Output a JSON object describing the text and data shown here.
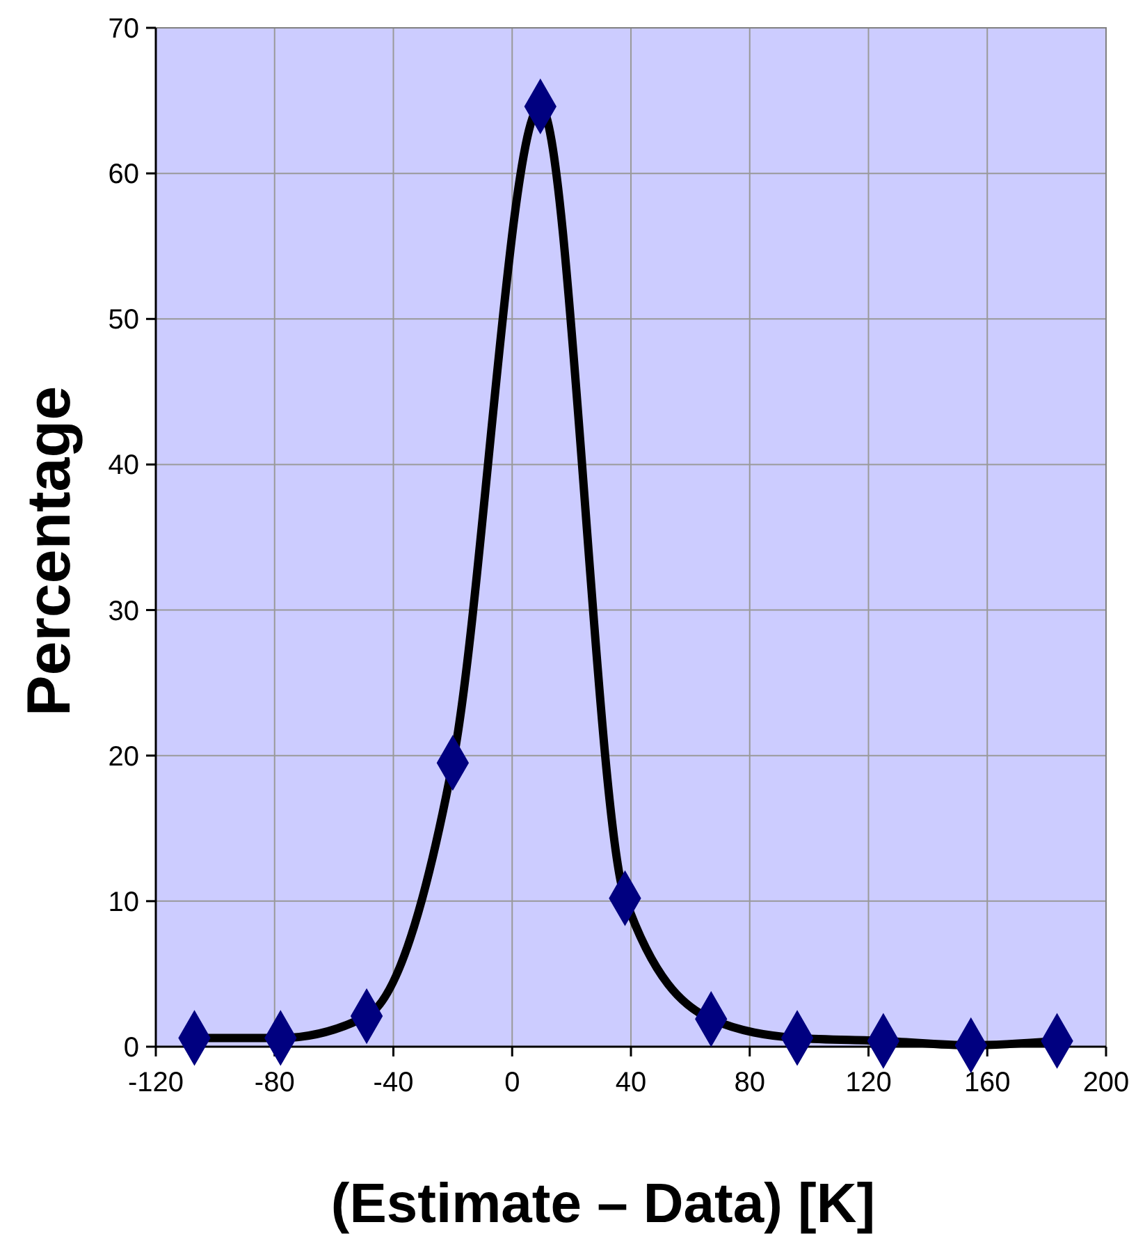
{
  "chart_data": {
    "type": "line",
    "xlabel": "(Estimate – Data) [K]",
    "ylabel": "Percentage",
    "x": [
      -107,
      -78,
      -49,
      -20,
      9.5,
      38,
      67,
      96,
      125,
      154.5,
      183.5
    ],
    "series": [
      {
        "color": "#000000",
        "values": [
          0.6,
          0.6,
          2.1,
          19.5,
          64.6,
          10.2,
          1.9,
          0.6,
          0.4,
          0.1,
          0.4
        ]
      }
    ],
    "xlim": [
      -120,
      200
    ],
    "xticks": [
      -120,
      -80,
      -40,
      0,
      40,
      80,
      120,
      160,
      200
    ],
    "ylim": [
      0,
      70
    ],
    "yticks": [
      0,
      10,
      20,
      30,
      40,
      50,
      60,
      70
    ],
    "grid": true,
    "marker": "diamond",
    "line_style": "solid"
  }
}
